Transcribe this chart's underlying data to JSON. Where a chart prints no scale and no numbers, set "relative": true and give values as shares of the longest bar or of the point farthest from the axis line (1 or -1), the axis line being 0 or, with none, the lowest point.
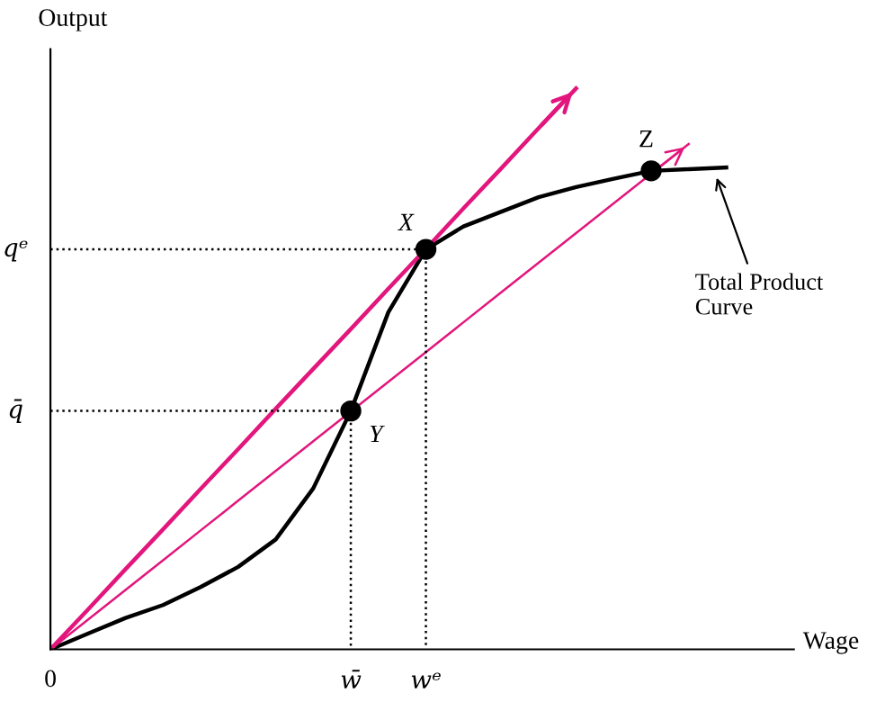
{
  "chart_data": {
    "type": "line",
    "relative": true,
    "tick_labels": "x",
    "xlabel": "Wage",
    "ylabel": "Output",
    "categories": [
      "0",
      null,
      null,
      null,
      null,
      null,
      null,
      null,
      "w̄",
      null,
      "wᵉ",
      null,
      null,
      null,
      null,
      null,
      null,
      null,
      null
    ],
    "series": [
      {
        "color": "#000000",
        "values": [
          0,
          0.028,
          0.056,
          0.079,
          0.111,
          0.147,
          0.196,
          0.287,
          0.425,
          0.601,
          0.713,
          0.754,
          0.78,
          0.806,
          0.824,
          0.839,
          0.853,
          0.856,
          0.859
        ]
      },
      {
        "color": "#e2167c",
        "values": [
          0,
          0.071,
          0.143,
          0.214,
          0.286,
          0.357,
          0.429,
          0.5,
          0.571,
          0.643,
          0.714,
          0.786,
          0.857,
          0.929,
          1.0,
          null,
          null,
          null,
          null
        ]
      },
      {
        "color": "#e2167c",
        "values": [
          0,
          0.053,
          0.106,
          0.159,
          0.212,
          0.265,
          0.318,
          0.371,
          0.424,
          0.477,
          0.53,
          0.583,
          0.636,
          0.689,
          0.742,
          0.795,
          0.848,
          0.901,
          null
        ]
      },
      {
        "color": "#000000",
        "line_style": "dotted",
        "values": [
          0.713,
          0.713,
          0.713,
          0.713,
          0.713,
          0.713,
          0.713,
          0.713,
          0.713,
          0.713,
          0.713,
          null,
          null,
          null,
          null,
          null,
          null,
          null,
          null
        ]
      },
      {
        "color": "#000000",
        "line_style": "dotted",
        "values": [
          0.425,
          0.425,
          0.425,
          0.425,
          0.425,
          0.425,
          0.425,
          0.425,
          0.425,
          null,
          null,
          null,
          null,
          null,
          null,
          null,
          null,
          null,
          null
        ]
      },
      {
        "type": "scatter",
        "color": "#000000",
        "marker": "circle",
        "values": [
          null,
          null,
          null,
          null,
          null,
          null,
          null,
          null,
          0.425,
          null,
          0.713,
          null,
          null,
          null,
          null,
          null,
          0.853,
          null,
          null
        ]
      }
    ],
    "annotations": [
      "X",
      "Y",
      "Z",
      "Total Product\nCurve",
      "qᵉ",
      "q̄"
    ]
  }
}
